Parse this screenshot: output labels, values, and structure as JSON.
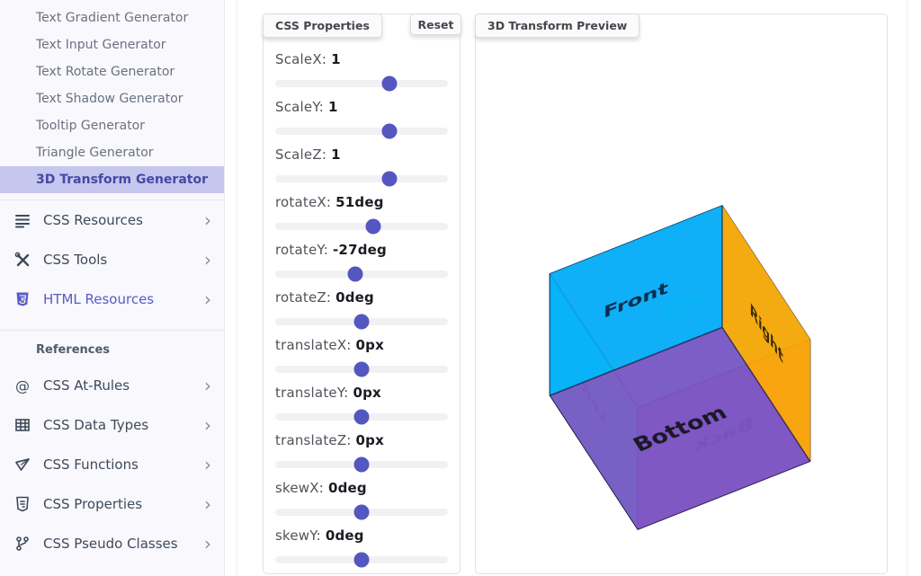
{
  "theme": {
    "accent_color": "#5457bf",
    "sidebar_highlight_bg": "#c6c7ee",
    "sidebar_link_purple": "#575cc6",
    "face_blue": "#29b6f6",
    "face_orange": "#ffa726",
    "face_purple": "#7d56c2",
    "face_cyan": "#26c6da"
  },
  "sidebar": {
    "chevron": "›",
    "generators": [
      {
        "label": "Text Gradient Generator",
        "active": false
      },
      {
        "label": "Text Input Generator",
        "active": false
      },
      {
        "label": "Text Rotate Generator",
        "active": false
      },
      {
        "label": "Text Shadow Generator",
        "active": false
      },
      {
        "label": "Tooltip Generator",
        "active": false
      },
      {
        "label": "Triangle Generator",
        "active": false
      },
      {
        "label": "3D Transform Generator",
        "active": true
      }
    ],
    "groups": [
      {
        "label": "CSS Resources",
        "icon": "list-icon"
      },
      {
        "label": "CSS Tools",
        "icon": "tools-icon"
      },
      {
        "label": "HTML Resources",
        "icon": "html5-shield-icon"
      }
    ],
    "references_heading": "References",
    "references": [
      {
        "label": "CSS At-Rules",
        "icon": "at-rule-icon"
      },
      {
        "label": "CSS Data Types",
        "icon": "table-icon"
      },
      {
        "label": "CSS Functions",
        "icon": "function-icon"
      },
      {
        "label": "CSS Properties",
        "icon": "css3-shield-icon"
      },
      {
        "label": "CSS Pseudo Classes",
        "icon": "branch-icon"
      }
    ]
  },
  "properties_panel": {
    "title": "CSS Properties",
    "reset_label": "Reset",
    "sliders": [
      {
        "label": "ScaleX:",
        "value": "1",
        "percent": 66
      },
      {
        "label": "ScaleY:",
        "value": "1",
        "percent": 66
      },
      {
        "label": "ScaleZ:",
        "value": "1",
        "percent": 66
      },
      {
        "label": "rotateX:",
        "value": "51deg",
        "percent": 57
      },
      {
        "label": "rotateY:",
        "value": "-27deg",
        "percent": 46.3
      },
      {
        "label": "rotateZ:",
        "value": "0deg",
        "percent": 50
      },
      {
        "label": "translateX:",
        "value": "0px",
        "percent": 50
      },
      {
        "label": "translateY:",
        "value": "0px",
        "percent": 50
      },
      {
        "label": "translateZ:",
        "value": "0px",
        "percent": 50
      },
      {
        "label": "skewX:",
        "value": "0deg",
        "percent": 50
      },
      {
        "label": "skewY:",
        "value": "0deg",
        "percent": 50
      }
    ]
  },
  "preview_panel": {
    "title": "3D Transform Preview",
    "cube": {
      "transform": "rotateX(51deg) rotateY(-27deg)",
      "faces": [
        {
          "name": "front",
          "label": "Front",
          "color": "rgba(0,172,248,0.85)"
        },
        {
          "name": "back",
          "label": "Back",
          "color": "rgba(124,62,212,0.8)"
        },
        {
          "name": "right",
          "label": "Right",
          "color": "rgba(255,169,0,0.93)"
        },
        {
          "name": "left",
          "label": "Left",
          "color": "rgba(0,214,232,0.8)"
        },
        {
          "name": "top",
          "label": "Top",
          "color": "rgba(38,178,246,0.72)"
        },
        {
          "name": "bottom",
          "label": "Bottom",
          "color": "rgba(125,86,194,0.93)"
        }
      ]
    }
  }
}
